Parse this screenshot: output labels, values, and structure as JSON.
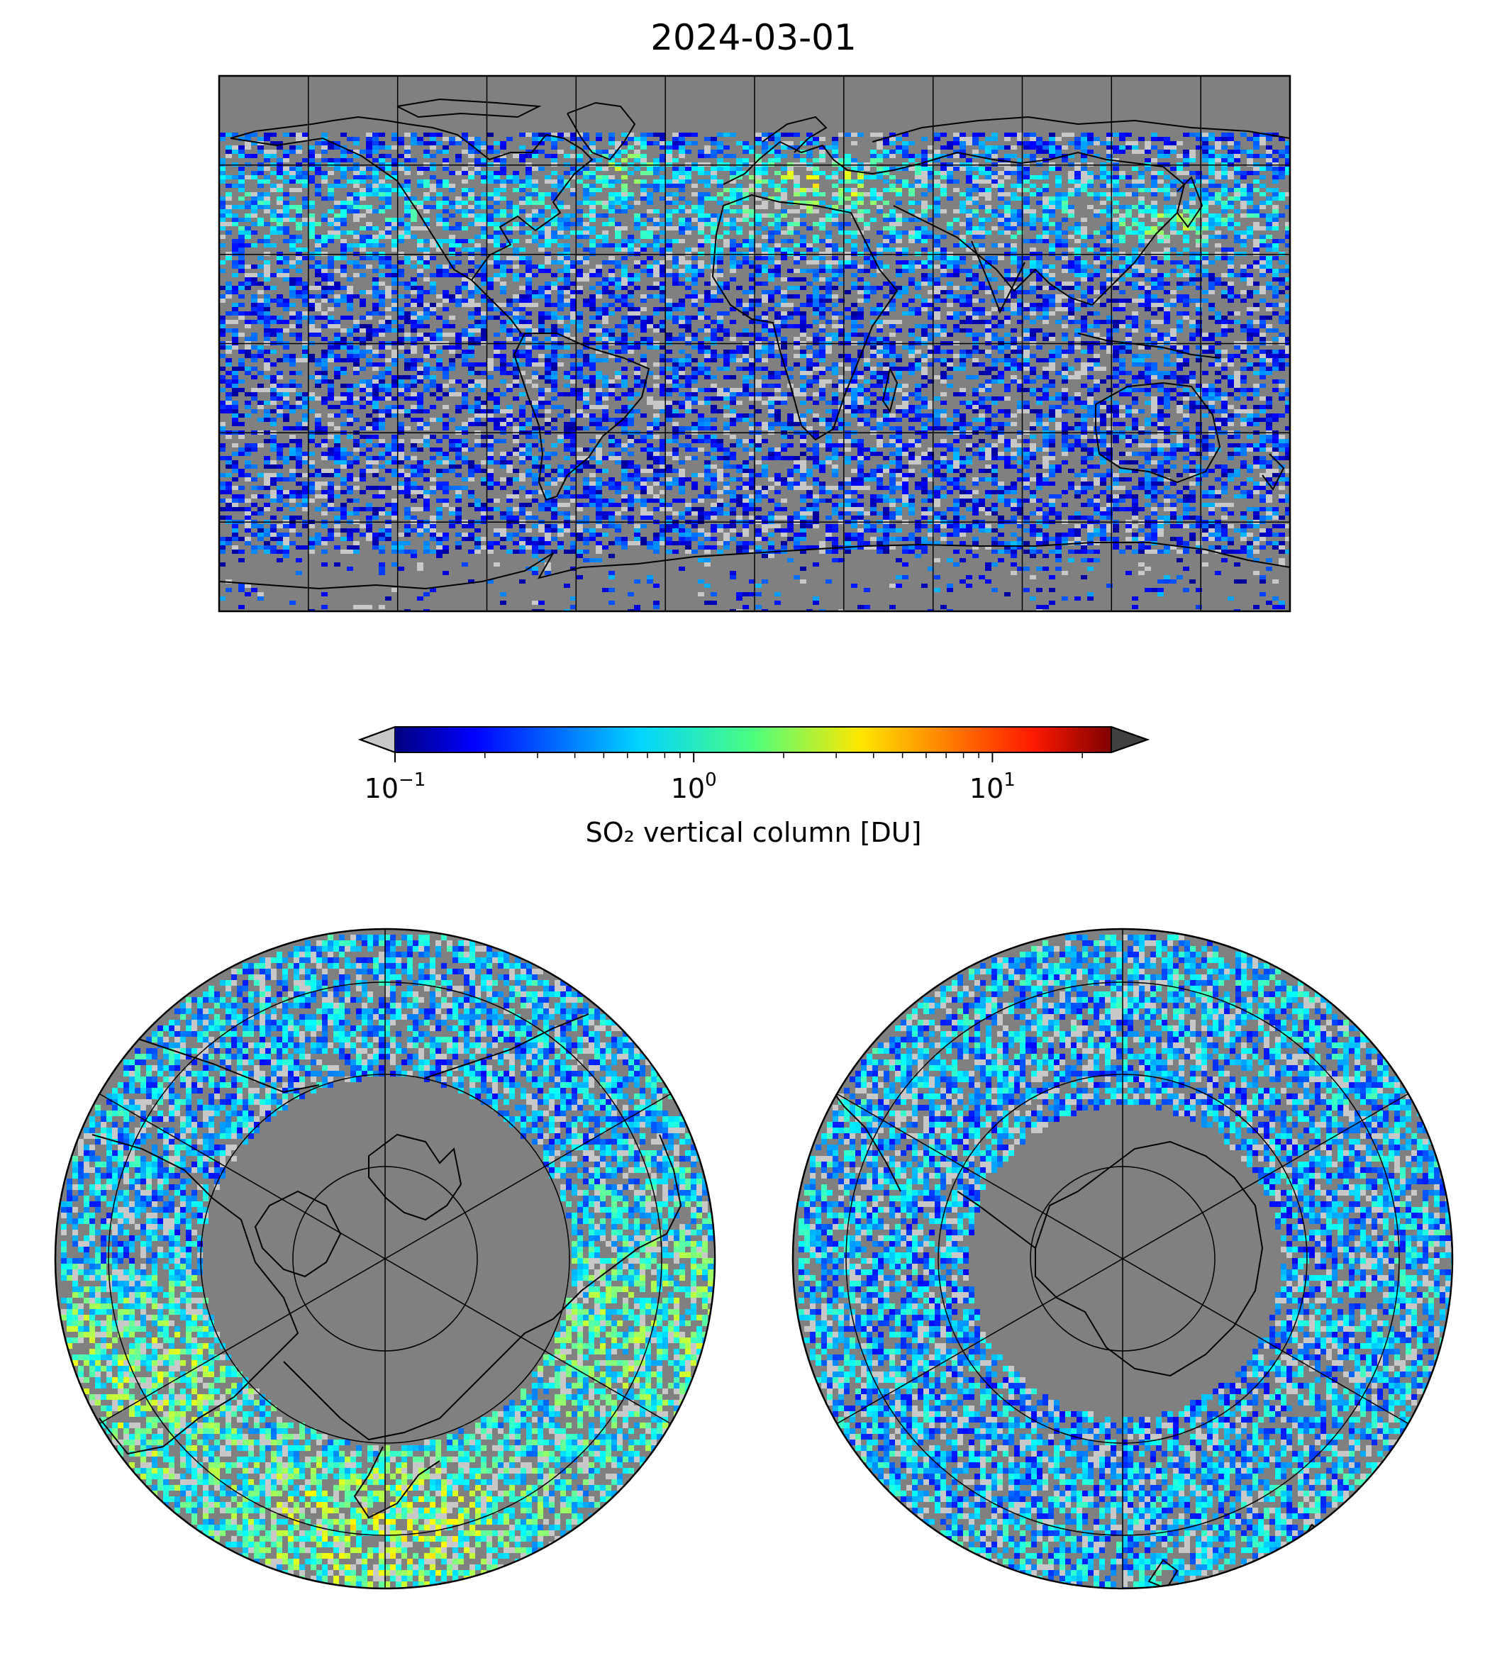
{
  "figure": {
    "title": "2024-03-01"
  },
  "colorbar": {
    "label": "SO₂ vertical column [DU]",
    "scale": "log",
    "range": [
      0.1,
      25
    ],
    "colormap": "jet",
    "extend": "both",
    "under_color": "#c8c8c8",
    "over_color": "#404040",
    "ticks": [
      {
        "value": 0.1,
        "base": "10",
        "exp": "−1"
      },
      {
        "value": 1,
        "base": "10",
        "exp": "0"
      },
      {
        "value": 10,
        "base": "10",
        "exp": "1"
      }
    ]
  },
  "maps": {
    "global": {
      "projection": "plate-carree",
      "grid": true,
      "background_color": "#808080"
    },
    "north_polar": {
      "projection": "north-polar-stereographic",
      "grid": true,
      "background_color": "#808080"
    },
    "south_polar": {
      "projection": "south-polar-stereographic",
      "grid": true,
      "background_color": "#808080"
    }
  }
}
